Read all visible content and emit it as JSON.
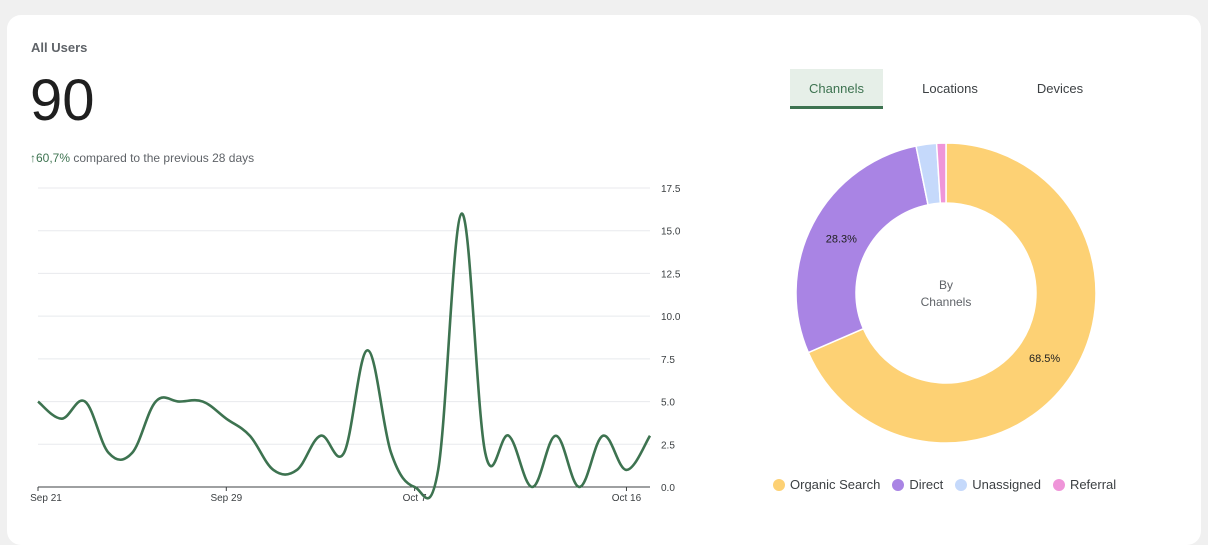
{
  "card": {
    "title": "All Users",
    "value": "90",
    "change_arrow": "↑",
    "change_pct": "60,7%",
    "change_text": "compared to the previous 28 days"
  },
  "tabs": [
    {
      "label": "Channels",
      "active": true
    },
    {
      "label": "Locations",
      "active": false
    },
    {
      "label": "Devices",
      "active": false
    }
  ],
  "donut": {
    "center_line1": "By",
    "center_line2": "Channels"
  },
  "legend": [
    {
      "label": "Organic Search",
      "color": "#fdd174"
    },
    {
      "label": "Direct",
      "color": "#a984e4"
    },
    {
      "label": "Unassigned",
      "color": "#c5d9fb"
    },
    {
      "label": "Referral",
      "color": "#ef95d9"
    }
  ],
  "colors": {
    "line": "#3d7350",
    "accent": "#3d7350"
  },
  "chart_data": [
    {
      "type": "line",
      "x_ticks": [
        "Sep 21",
        "Sep 29",
        "Oct 7",
        "Oct 16"
      ],
      "y_ticks": [
        "0.0",
        "2.5",
        "5.0",
        "7.5",
        "10.0",
        "12.5",
        "15.0",
        "17.5"
      ],
      "ylim": [
        0,
        17.5
      ],
      "grid": true,
      "x": [
        "Sep 21",
        "Sep 22",
        "Sep 23",
        "Sep 24",
        "Sep 25",
        "Sep 26",
        "Sep 27",
        "Sep 28",
        "Sep 29",
        "Sep 30",
        "Oct 1",
        "Oct 2",
        "Oct 3",
        "Oct 4",
        "Oct 5",
        "Oct 6",
        "Oct 7",
        "Oct 8",
        "Oct 9",
        "Oct 10",
        "Oct 11",
        "Oct 12",
        "Oct 13",
        "Oct 14",
        "Oct 15",
        "Oct 16",
        "Oct 17"
      ],
      "values": [
        5,
        4,
        5,
        2,
        2,
        5,
        5,
        5,
        4,
        3,
        1,
        1,
        3,
        2,
        8,
        2,
        0,
        1,
        16,
        2,
        3,
        0,
        3,
        0,
        3,
        1,
        3
      ]
    },
    {
      "type": "pie",
      "categories": [
        "Organic Search",
        "Direct",
        "Unassigned",
        "Referral"
      ],
      "values": [
        68.5,
        28.3,
        2.2,
        1.0
      ],
      "labels": [
        "68.5%",
        "28.3%"
      ]
    }
  ]
}
